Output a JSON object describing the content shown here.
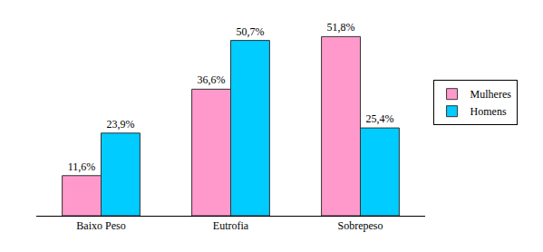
{
  "chart_data": {
    "type": "bar",
    "categories": [
      "Baixo Peso",
      "Eutrofia",
      "Sobrepeso"
    ],
    "series": [
      {
        "name": "Mulheres",
        "color": "#ff99cc",
        "values": [
          11.6,
          36.6,
          51.8
        ],
        "value_labels": [
          "11,6%",
          "36,6%",
          "51,8%"
        ]
      },
      {
        "name": "Homens",
        "color": "#00ccff",
        "values": [
          23.9,
          50.7,
          25.4
        ],
        "value_labels": [
          "23,9%",
          "50,7%",
          "25,4%"
        ]
      }
    ],
    "data_labels": true,
    "tick_labels": "x",
    "grid": false,
    "legend": "right"
  }
}
